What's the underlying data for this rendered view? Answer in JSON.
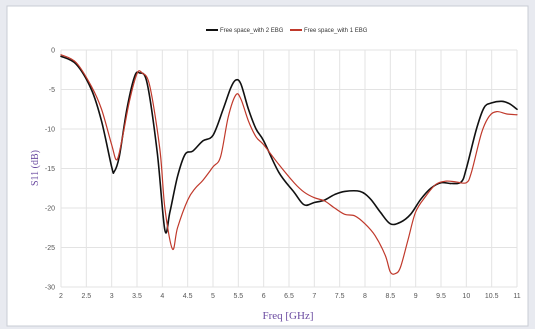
{
  "chart_data": {
    "type": "line",
    "xlabel": "Freq [GHz]",
    "ylabel": "S11 (dB)",
    "xlim": [
      2,
      11
    ],
    "ylim": [
      -30,
      0
    ],
    "x_ticks": [
      "2",
      "2.5",
      "3",
      "3.5",
      "4",
      "4.5",
      "5",
      "5.5",
      "6",
      "6.5",
      "7",
      "7.5",
      "8",
      "8.5",
      "9",
      "9.5",
      "10",
      "10.5",
      "11"
    ],
    "y_ticks": [
      "0",
      "-5",
      "-10",
      "-15",
      "-20",
      "-25",
      "-30"
    ],
    "grid": true,
    "legend_position": "top-center",
    "series": [
      {
        "name": "Free space_with 2 EBG",
        "color": "#111111",
        "points": [
          [
            2.0,
            -0.8
          ],
          [
            2.3,
            -1.8
          ],
          [
            2.6,
            -5.0
          ],
          [
            2.8,
            -9.0
          ],
          [
            3.0,
            -14.8
          ],
          [
            3.05,
            -15.4
          ],
          [
            3.15,
            -13.5
          ],
          [
            3.3,
            -7.5
          ],
          [
            3.45,
            -3.4
          ],
          [
            3.55,
            -2.9
          ],
          [
            3.7,
            -4.2
          ],
          [
            3.9,
            -13.0
          ],
          [
            4.05,
            -22.8
          ],
          [
            4.15,
            -20.5
          ],
          [
            4.3,
            -16.0
          ],
          [
            4.45,
            -13.2
          ],
          [
            4.6,
            -12.8
          ],
          [
            4.8,
            -11.5
          ],
          [
            5.0,
            -10.8
          ],
          [
            5.2,
            -7.5
          ],
          [
            5.35,
            -4.8
          ],
          [
            5.45,
            -3.8
          ],
          [
            5.55,
            -4.3
          ],
          [
            5.7,
            -7.5
          ],
          [
            5.85,
            -10.0
          ],
          [
            6.0,
            -11.5
          ],
          [
            6.3,
            -15.5
          ],
          [
            6.6,
            -18.0
          ],
          [
            6.8,
            -19.6
          ],
          [
            7.0,
            -19.3
          ],
          [
            7.2,
            -19.0
          ],
          [
            7.4,
            -18.3
          ],
          [
            7.6,
            -17.9
          ],
          [
            7.9,
            -17.9
          ],
          [
            8.1,
            -18.8
          ],
          [
            8.3,
            -20.5
          ],
          [
            8.5,
            -22.0
          ],
          [
            8.7,
            -21.8
          ],
          [
            8.9,
            -20.8
          ],
          [
            9.1,
            -18.9
          ],
          [
            9.3,
            -17.5
          ],
          [
            9.5,
            -16.8
          ],
          [
            9.7,
            -16.9
          ],
          [
            9.9,
            -16.7
          ],
          [
            10.0,
            -15.0
          ],
          [
            10.2,
            -10.0
          ],
          [
            10.35,
            -7.3
          ],
          [
            10.5,
            -6.7
          ],
          [
            10.7,
            -6.5
          ],
          [
            10.85,
            -6.8
          ],
          [
            11.0,
            -7.5
          ]
        ]
      },
      {
        "name": "Free space_with 1 EBG",
        "color": "#c0392b",
        "points": [
          [
            2.0,
            -0.6
          ],
          [
            2.3,
            -1.6
          ],
          [
            2.6,
            -4.6
          ],
          [
            2.8,
            -7.5
          ],
          [
            3.0,
            -12.0
          ],
          [
            3.1,
            -13.9
          ],
          [
            3.2,
            -11.5
          ],
          [
            3.35,
            -6.5
          ],
          [
            3.5,
            -3.0
          ],
          [
            3.6,
            -2.9
          ],
          [
            3.75,
            -4.5
          ],
          [
            3.95,
            -12.5
          ],
          [
            4.05,
            -20.0
          ],
          [
            4.2,
            -25.2
          ],
          [
            4.3,
            -22.5
          ],
          [
            4.5,
            -19.0
          ],
          [
            4.65,
            -17.5
          ],
          [
            4.8,
            -16.5
          ],
          [
            5.0,
            -14.8
          ],
          [
            5.15,
            -13.5
          ],
          [
            5.3,
            -8.5
          ],
          [
            5.45,
            -5.7
          ],
          [
            5.55,
            -6.2
          ],
          [
            5.7,
            -9.0
          ],
          [
            5.85,
            -11.0
          ],
          [
            6.0,
            -12.0
          ],
          [
            6.3,
            -14.5
          ],
          [
            6.6,
            -16.8
          ],
          [
            6.8,
            -18.0
          ],
          [
            7.0,
            -18.7
          ],
          [
            7.2,
            -19.1
          ],
          [
            7.4,
            -20.0
          ],
          [
            7.6,
            -20.8
          ],
          [
            7.8,
            -21.0
          ],
          [
            8.0,
            -22.0
          ],
          [
            8.2,
            -23.5
          ],
          [
            8.4,
            -26.0
          ],
          [
            8.5,
            -28.1
          ],
          [
            8.6,
            -28.3
          ],
          [
            8.7,
            -27.5
          ],
          [
            8.85,
            -24.0
          ],
          [
            9.0,
            -20.5
          ],
          [
            9.2,
            -18.5
          ],
          [
            9.4,
            -17.0
          ],
          [
            9.6,
            -16.6
          ],
          [
            9.8,
            -16.7
          ],
          [
            10.0,
            -16.8
          ],
          [
            10.1,
            -15.5
          ],
          [
            10.3,
            -10.5
          ],
          [
            10.45,
            -8.4
          ],
          [
            10.6,
            -7.8
          ],
          [
            10.8,
            -8.1
          ],
          [
            11.0,
            -8.2
          ]
        ]
      }
    ]
  }
}
